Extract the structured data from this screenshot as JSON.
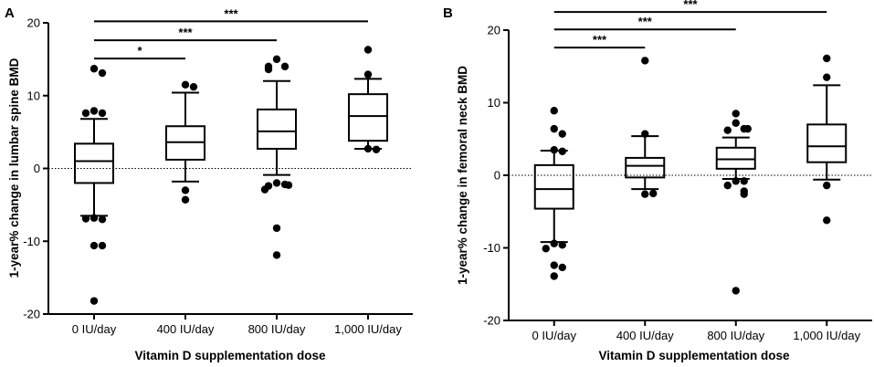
{
  "chart_data": [
    {
      "panel": "A",
      "type": "box",
      "xlabel": "Vitamin D supplementation dose",
      "ylabel": "1-year% change in lumbar spine  BMD",
      "categories": [
        "0 IU/day",
        "400 IU/day",
        "800 IU/day",
        "1,000 IU/day"
      ],
      "ylim": [
        -20,
        20
      ],
      "yticks": [
        {
          "value": 20,
          "label": "20"
        },
        {
          "value": 10,
          "label": "10"
        },
        {
          "value": 0,
          "label": "0"
        },
        {
          "value": -10,
          "label": "-10"
        },
        {
          "value": -20,
          "label": "-20"
        }
      ],
      "boxes": [
        {
          "q1": -2.0,
          "median": 1.0,
          "q3": 3.4,
          "whisker_low": -6.5,
          "whisker_high": 6.8,
          "outliers": [
            13.7,
            13.1,
            7.9,
            7.6,
            7.6,
            -6.8,
            -7.0,
            -6.9,
            -10.6,
            -10.6,
            -18.2
          ]
        },
        {
          "q1": 1.2,
          "median": 3.6,
          "q3": 5.8,
          "whisker_low": -1.8,
          "whisker_high": 10.4,
          "outliers": [
            11.5,
            11.2,
            -3.0,
            -4.3
          ]
        },
        {
          "q1": 2.7,
          "median": 5.1,
          "q3": 8.1,
          "whisker_low": -0.9,
          "whisker_high": 12.0,
          "outliers": [
            15.0,
            14.0,
            14.0,
            13.6,
            -2.0,
            -2.2,
            -2.4,
            -2.3,
            -2.9,
            -8.2,
            -11.9
          ]
        },
        {
          "q1": 3.8,
          "median": 7.2,
          "q3": 10.2,
          "whisker_low": 2.7,
          "whisker_high": 12.3,
          "outliers": [
            16.3,
            12.9,
            2.7,
            2.6
          ]
        }
      ],
      "reference_line": 0,
      "comparisons": [
        {
          "from": 0,
          "to": 1,
          "label": "*",
          "y": 15.1
        },
        {
          "from": 0,
          "to": 2,
          "label": "***",
          "y": 17.6
        },
        {
          "from": 0,
          "to": 3,
          "label": "***",
          "y": 20.2
        }
      ]
    },
    {
      "panel": "B",
      "type": "box",
      "xlabel": "Vitamin D supplementation dose",
      "ylabel": "1-year% change in femoral neck  BMD",
      "categories": [
        "0 IU/day",
        "400 IU/day",
        "800 IU/day",
        "1,000 IU/day"
      ],
      "ylim": [
        -20,
        20
      ],
      "yticks": [
        {
          "value": 20,
          "label": "20"
        },
        {
          "value": 10,
          "label": "10"
        },
        {
          "value": 0,
          "label": "0"
        },
        {
          "value": -10,
          "label": "-10"
        },
        {
          "value": -20,
          "label": "-20"
        }
      ],
      "boxes": [
        {
          "q1": -4.6,
          "median": -1.9,
          "q3": 1.4,
          "whisker_low": -9.2,
          "whisker_high": 3.4,
          "outliers": [
            8.9,
            6.4,
            5.7,
            3.5,
            3.3,
            -9.4,
            -9.6,
            -10.1,
            -12.4,
            -12.7,
            -13.9
          ]
        },
        {
          "q1": -0.3,
          "median": 1.3,
          "q3": 2.4,
          "whisker_low": -1.9,
          "whisker_high": 5.4,
          "outliers": [
            15.8,
            5.7,
            -2.6,
            -2.5
          ]
        },
        {
          "q1": 0.9,
          "median": 2.2,
          "q3": 3.8,
          "whisker_low": -0.5,
          "whisker_high": 5.2,
          "outliers": [
            8.5,
            7.2,
            6.4,
            6.2,
            6.4,
            -0.8,
            -0.8,
            -1.4,
            -2.2,
            -2.6,
            -15.9
          ]
        },
        {
          "q1": 1.8,
          "median": 4.0,
          "q3": 7.0,
          "whisker_low": -0.6,
          "whisker_high": 12.4,
          "outliers": [
            16.1,
            13.5,
            -1.4,
            -6.2
          ]
        }
      ],
      "reference_line": 0,
      "comparisons": [
        {
          "from": 0,
          "to": 1,
          "label": "***",
          "y": 17.6
        },
        {
          "from": 0,
          "to": 2,
          "label": "***",
          "y": 20.1
        },
        {
          "from": 0,
          "to": 3,
          "label": "***",
          "y": 22.5
        }
      ]
    }
  ]
}
